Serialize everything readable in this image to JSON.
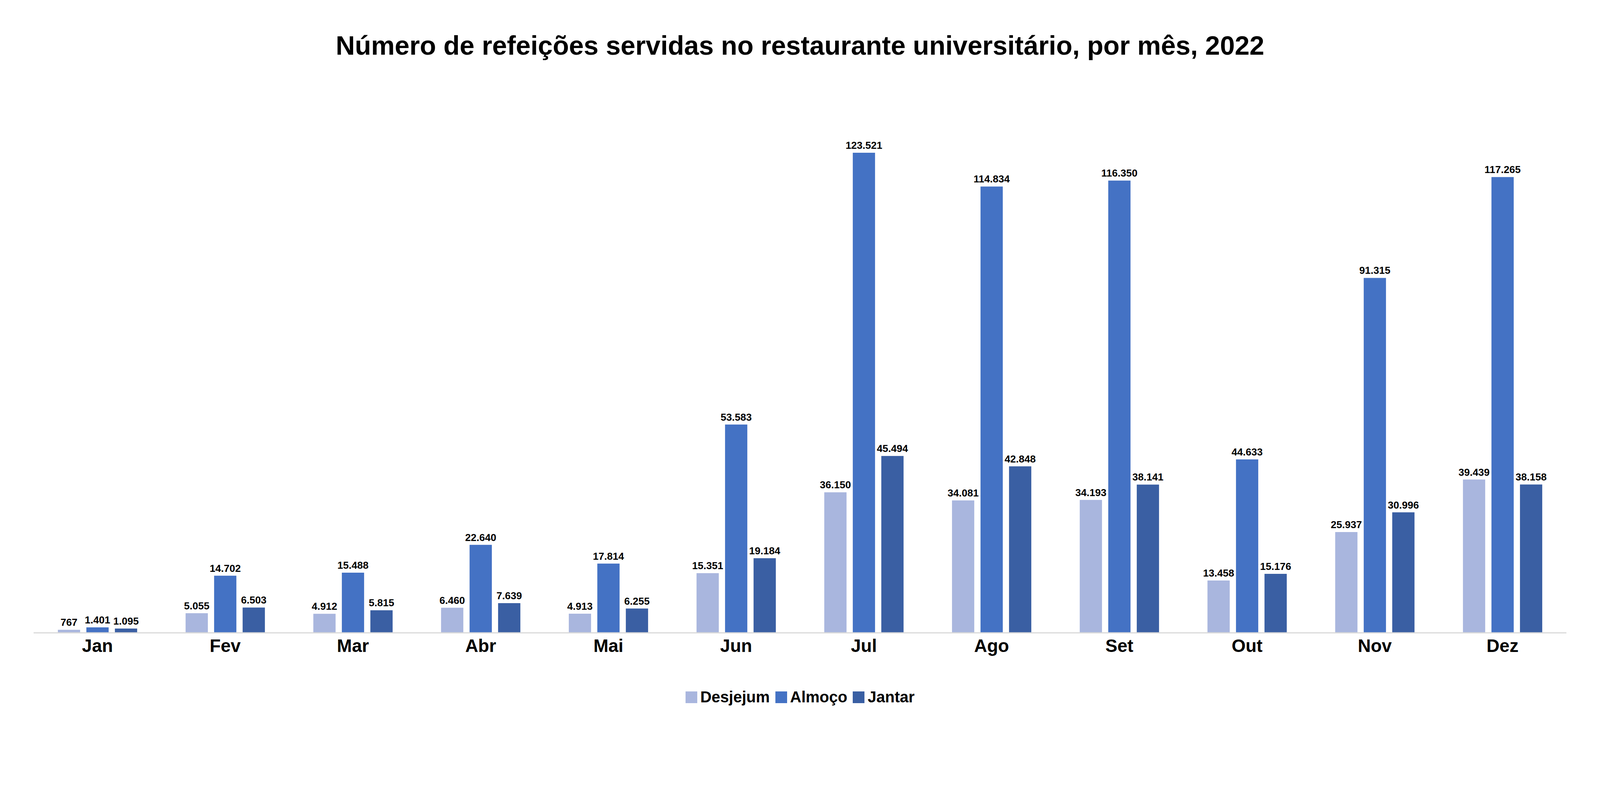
{
  "chart_data": {
    "type": "bar",
    "title": "Número de refeições servidas no restaurante universitário, por mês, 2022",
    "categories": [
      "Jan",
      "Fev",
      "Mar",
      "Abr",
      "Mai",
      "Jun",
      "Jul",
      "Ago",
      "Set",
      "Out",
      "Nov",
      "Dez"
    ],
    "series": [
      {
        "name": "Desjejum",
        "color": "#a9b6de",
        "values": [
          767,
          5055,
          4912,
          6460,
          4913,
          15351,
          36150,
          34081,
          34193,
          13458,
          25937,
          39439
        ],
        "value_labels": [
          "767",
          "5.055",
          "4.912",
          "6.460",
          "4.913",
          "15.351",
          "36.150",
          "34.081",
          "34.193",
          "13.458",
          "25.937",
          "39.439"
        ]
      },
      {
        "name": "Almoço",
        "color": "#4472c4",
        "values": [
          1401,
          14702,
          15488,
          22640,
          17814,
          53583,
          123521,
          114834,
          116350,
          44633,
          91315,
          117265
        ],
        "value_labels": [
          "1.401",
          "14.702",
          "15.488",
          "22.640",
          "17.814",
          "53.583",
          "123.521",
          "114.834",
          "116.350",
          "44.633",
          "91.315",
          "117.265"
        ]
      },
      {
        "name": "Jantar",
        "color": "#3a5fa3",
        "values": [
          1095,
          6503,
          5815,
          7639,
          6255,
          19184,
          45494,
          42848,
          38141,
          15176,
          30996,
          38158
        ],
        "value_labels": [
          "1.095",
          "6.503",
          "5.815",
          "7.639",
          "6.255",
          "19.184",
          "45.494",
          "42.848",
          "38.141",
          "15.176",
          "30.996",
          "38.158"
        ]
      }
    ],
    "ylim": [
      0,
      140000
    ],
    "yticks": [],
    "grid": false,
    "legend": "bottom",
    "data_labels": true,
    "tick_labels": "x"
  }
}
